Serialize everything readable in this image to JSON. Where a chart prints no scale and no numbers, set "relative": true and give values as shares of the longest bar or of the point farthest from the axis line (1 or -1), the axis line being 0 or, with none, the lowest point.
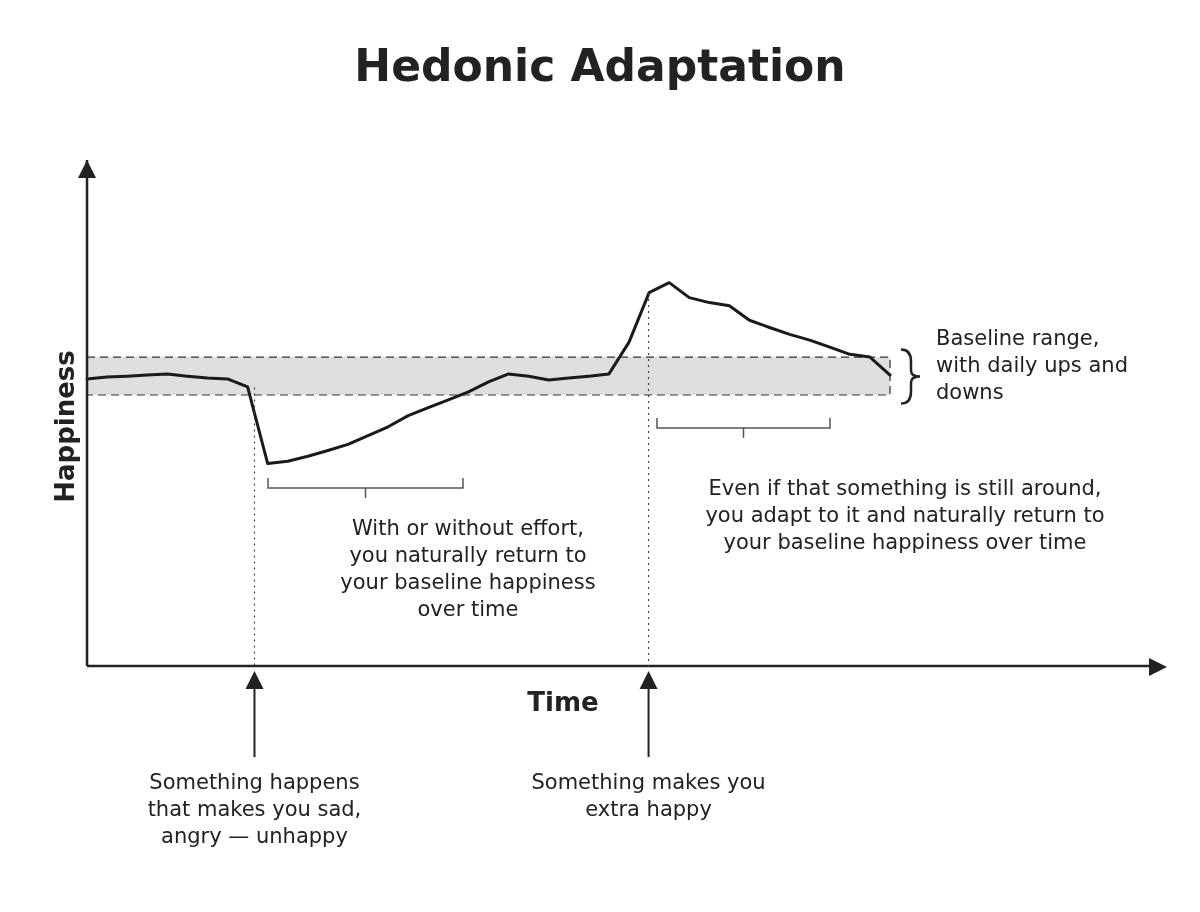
{
  "chart_data": {
    "type": "line",
    "title": "Hedonic Adaptation",
    "xlabel": "Time",
    "ylabel": "Happiness",
    "relative": true,
    "marker": "none",
    "line_style": "solid",
    "legend": false,
    "grid": false,
    "categories": [
      null,
      null,
      null,
      null,
      null,
      null,
      null,
      null,
      null,
      null,
      null,
      null,
      null,
      null,
      null,
      null,
      null,
      null,
      null,
      null,
      null,
      null,
      null,
      null,
      null,
      null,
      null,
      null,
      null,
      null,
      null,
      null,
      null,
      null,
      null,
      null,
      null,
      null,
      null,
      null,
      null,
      null,
      null,
      null,
      null,
      null,
      null,
      null,
      null,
      null,
      null,
      null,
      null,
      null
    ],
    "series": [
      {
        "color": "#1a1a1a",
        "values": [
          0.749,
          0.754,
          0.756,
          0.759,
          0.762,
          0.756,
          0.751,
          0.749,
          0.728,
          0.528,
          0.534,
          0.547,
          0.562,
          0.578,
          0.601,
          0.624,
          0.653,
          0.674,
          0.694,
          0.715,
          0.741,
          0.762,
          0.756,
          0.746,
          0.751,
          0.756,
          0.762,
          0.845,
          0.974,
          1,
          0.961,
          0.948,
          0.94,
          0.902,
          0.883,
          0.865,
          0.85,
          0.832,
          0.813,
          0.806,
          0.759,
          null,
          null,
          null,
          null,
          null,
          null,
          null,
          null,
          null,
          null,
          null,
          null,
          null
        ]
      }
    ],
    "bands": [
      {
        "axis": "y",
        "from": 0.707,
        "to": 0.806,
        "label": "Baseline range, with daily ups and downs",
        "color": "#dedede"
      }
    ],
    "annotations": [
      "With or without effort, you naturally return to your baseline happiness over time",
      "Even if that something is still around, you adapt to it and naturally return to your baseline happiness over time",
      "Something happens that makes you sad, angry — unhappy",
      "Something makes you extra happy"
    ]
  }
}
